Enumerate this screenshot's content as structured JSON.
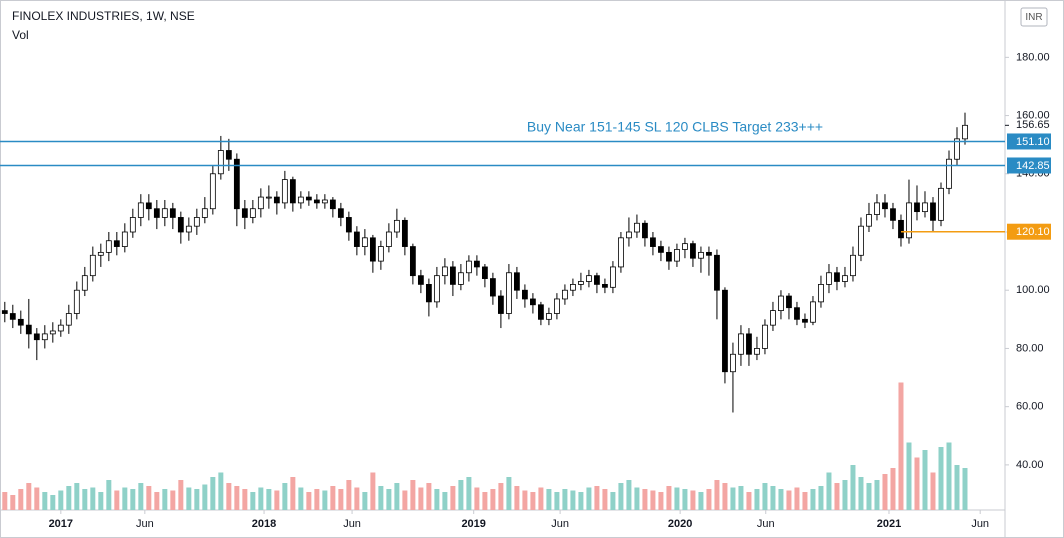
{
  "chart_data": {
    "type": "candlestick",
    "title": "FINOLEX INDUSTRIES, 1W, NSE",
    "volume_label": "Vol",
    "currency": "INR",
    "annotation": "Buy Near 151-145 SL 120 CLBS Target 233+++",
    "up_color": "#ffffff",
    "down_color": "#000000",
    "wick_color": "#000000",
    "volume_up_color": "#8fd1c8",
    "volume_down_color": "#f3a6a3",
    "grid": false,
    "xlim": [
      -0.6,
      125
    ],
    "xticks": [
      {
        "value": 7,
        "label": "2017"
      },
      {
        "value": 17.5,
        "label": "Jun"
      },
      {
        "value": 32.4,
        "label": "2018"
      },
      {
        "value": 43.4,
        "label": "Jun"
      },
      {
        "value": 58.6,
        "label": "2019"
      },
      {
        "value": 69.4,
        "label": "Jun"
      },
      {
        "value": 84.4,
        "label": "2020"
      },
      {
        "value": 95.1,
        "label": "Jun"
      },
      {
        "value": 110.5,
        "label": "2021"
      },
      {
        "value": 121.9,
        "label": "Jun"
      }
    ],
    "ylim": [
      24.5,
      199.7
    ],
    "yticks": [
      {
        "value": 40,
        "label": "40.00"
      },
      {
        "value": 60,
        "label": "60.00"
      },
      {
        "value": 80,
        "label": "80.00"
      },
      {
        "value": 100,
        "label": "100.00"
      },
      {
        "value": 120,
        "label": "120.00"
      },
      {
        "value": 140,
        "label": "140.00"
      },
      {
        "value": 160,
        "label": "160.00"
      },
      {
        "value": 180,
        "label": "180.00"
      }
    ],
    "vlim": [
      0,
      340
    ],
    "levels": [
      {
        "value": 151.1,
        "label": "151.10",
        "color": "#2a8bc4"
      },
      {
        "value": 142.85,
        "label": "142.85",
        "color": "#2a8bc4"
      },
      {
        "value": 120.1,
        "label": "120.10",
        "color": "#f39c12"
      }
    ],
    "last_price": {
      "value": 156.65,
      "label": "156.65"
    },
    "open": [
      93,
      92,
      90,
      88,
      85,
      83,
      85,
      86,
      88,
      92,
      100,
      105,
      112,
      113,
      117,
      115,
      120,
      125,
      130,
      128,
      125,
      128,
      125,
      120,
      122,
      125,
      128,
      140,
      148,
      145,
      128,
      125,
      128,
      132,
      132,
      130,
      138,
      130,
      132,
      131,
      130,
      131,
      128,
      125,
      120,
      115,
      118,
      110,
      115,
      120,
      124,
      115,
      105,
      102,
      96,
      105,
      108,
      102,
      106,
      110,
      108,
      104,
      98,
      92,
      106,
      100,
      97,
      95,
      90,
      92,
      97,
      100,
      102,
      103,
      105,
      102,
      101,
      108,
      118,
      120,
      123,
      118,
      115,
      113,
      110,
      114,
      116,
      111,
      113,
      112,
      100,
      72,
      78,
      85,
      78,
      80,
      88,
      93,
      98,
      94,
      90,
      89,
      96,
      102,
      106,
      103,
      105,
      112,
      122,
      126,
      130,
      128,
      124,
      118,
      130,
      127,
      130,
      124,
      135,
      145,
      152
    ],
    "high": [
      96,
      95,
      93,
      97,
      87,
      88,
      89,
      90,
      95,
      103,
      108,
      115,
      116,
      120,
      120,
      123,
      128,
      133,
      133,
      131,
      131,
      130,
      127,
      125,
      128,
      132,
      143,
      153,
      152,
      147,
      131,
      131,
      135,
      136,
      134,
      141,
      139,
      134,
      134,
      133,
      133,
      132,
      130,
      127,
      122,
      121,
      119,
      117,
      123,
      128,
      125,
      116,
      107,
      104,
      108,
      111,
      110,
      109,
      112,
      112,
      109,
      106,
      100,
      109,
      108,
      102,
      99,
      96,
      94,
      99,
      102,
      104,
      106,
      107,
      106,
      104,
      110,
      120,
      125,
      126,
      124,
      120,
      117,
      115,
      116,
      118,
      117,
      115,
      115,
      114,
      101,
      82,
      88,
      87,
      84,
      90,
      96,
      100,
      99,
      96,
      92,
      98,
      105,
      109,
      108,
      108,
      115,
      125,
      130,
      133,
      133,
      130,
      126,
      138,
      136,
      134,
      132,
      137,
      148,
      156,
      161
    ],
    "low": [
      89,
      87,
      85,
      80,
      76,
      80,
      82,
      84,
      85,
      90,
      98,
      103,
      108,
      110,
      112,
      113,
      118,
      122,
      124,
      121,
      122,
      121,
      116,
      117,
      119,
      123,
      126,
      138,
      141,
      122,
      121,
      123,
      125,
      128,
      126,
      128,
      127,
      128,
      129,
      128,
      128,
      125,
      122,
      117,
      112,
      112,
      106,
      107,
      113,
      118,
      112,
      102,
      99,
      91,
      94,
      102,
      98,
      100,
      103,
      105,
      101,
      95,
      87,
      90,
      97,
      94,
      92,
      88,
      88,
      90,
      95,
      98,
      100,
      101,
      99,
      99,
      99,
      106,
      115,
      118,
      115,
      112,
      110,
      107,
      108,
      111,
      108,
      106,
      105,
      90,
      68,
      58,
      74,
      74,
      76,
      78,
      86,
      90,
      90,
      88,
      87,
      88,
      94,
      99,
      100,
      101,
      103,
      110,
      120,
      124,
      125,
      121,
      115,
      116,
      124,
      125,
      120,
      122,
      133,
      143,
      150
    ],
    "close": [
      92,
      90,
      88,
      85,
      83,
      85,
      86,
      88,
      92,
      100,
      105,
      112,
      113,
      117,
      115,
      120,
      125,
      130,
      128,
      125,
      128,
      125,
      120,
      122,
      125,
      128,
      140,
      148,
      145,
      128,
      125,
      128,
      132,
      132,
      130,
      138,
      130,
      132,
      131,
      130,
      131,
      128,
      125,
      120,
      115,
      118,
      110,
      115,
      120,
      124,
      115,
      105,
      102,
      96,
      105,
      108,
      102,
      106,
      110,
      108,
      104,
      98,
      92,
      106,
      100,
      97,
      95,
      90,
      92,
      97,
      100,
      102,
      103,
      105,
      102,
      101,
      108,
      118,
      120,
      123,
      118,
      115,
      113,
      110,
      114,
      116,
      111,
      113,
      112,
      100,
      72,
      78,
      85,
      78,
      80,
      88,
      93,
      98,
      94,
      90,
      89,
      96,
      102,
      106,
      103,
      105,
      112,
      122,
      126,
      130,
      128,
      124,
      118,
      130,
      127,
      130,
      124,
      135,
      145,
      152,
      156.65
    ],
    "volume": [
      12,
      10,
      14,
      18,
      15,
      12,
      10,
      13,
      16,
      18,
      14,
      15,
      12,
      20,
      13,
      15,
      14,
      18,
      16,
      12,
      14,
      13,
      20,
      15,
      14,
      17,
      22,
      25,
      18,
      16,
      14,
      12,
      15,
      14,
      13,
      18,
      22,
      15,
      12,
      14,
      13,
      16,
      14,
      20,
      15,
      12,
      25,
      16,
      14,
      18,
      13,
      20,
      15,
      18,
      14,
      12,
      16,
      20,
      22,
      15,
      12,
      14,
      18,
      22,
      16,
      13,
      12,
      15,
      14,
      12,
      14,
      13,
      12,
      15,
      16,
      14,
      12,
      18,
      20,
      15,
      14,
      13,
      12,
      16,
      15,
      14,
      13,
      12,
      14,
      20,
      18,
      15,
      16,
      12,
      14,
      18,
      16,
      14,
      13,
      15,
      12,
      14,
      16,
      25,
      18,
      20,
      30,
      22,
      18,
      20,
      24,
      28,
      85,
      45,
      35,
      40,
      25,
      42,
      45,
      30,
      28
    ]
  }
}
